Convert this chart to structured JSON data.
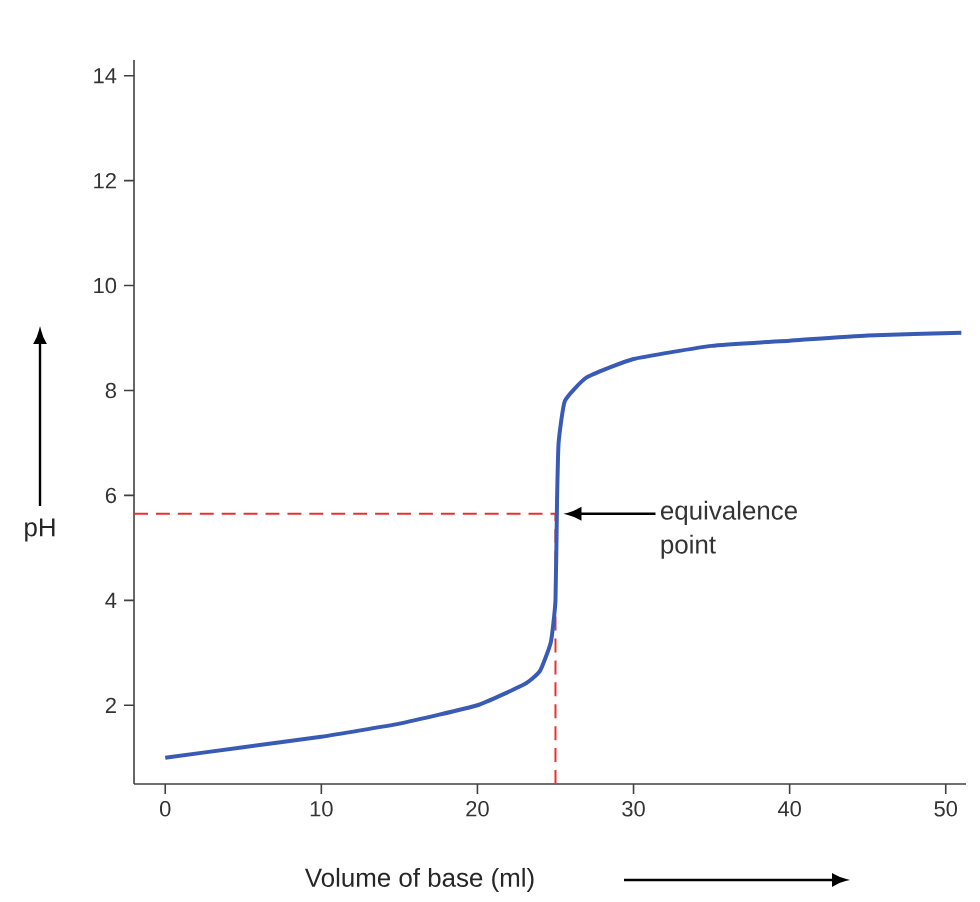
{
  "chart_data": {
    "type": "line",
    "xlabel": "Volume of base (ml)",
    "ylabel": "pH",
    "x": [
      0,
      5,
      10,
      15,
      20,
      23,
      24,
      24.7,
      25,
      25.1,
      25.2,
      25.6,
      27,
      30,
      35,
      40,
      45,
      51
    ],
    "series": [
      {
        "color": "#3a5bb5",
        "values": [
          1.0,
          1.2,
          1.4,
          1.65,
          2.0,
          2.4,
          2.65,
          3.2,
          4.0,
          5.9,
          7.0,
          7.8,
          8.25,
          8.6,
          8.85,
          8.95,
          9.05,
          9.1
        ]
      }
    ],
    "xlim": [
      -2,
      51.3
    ],
    "ylim": [
      0.5,
      14.3
    ],
    "xticks": [
      0,
      10,
      20,
      30,
      40,
      50
    ],
    "yticks": [
      2,
      4,
      6,
      8,
      10,
      12,
      14
    ],
    "ref_lines": [
      {
        "axis": "y",
        "value": 5.65,
        "color": "#e8302e",
        "line_style": "dashed"
      },
      {
        "axis": "x",
        "value": 25,
        "color": "#e8302e",
        "line_style": "dashed"
      }
    ],
    "annotations": [
      "equivalence point"
    ],
    "grid": false,
    "legend": false,
    "marker": "none",
    "line_style": "solid"
  }
}
